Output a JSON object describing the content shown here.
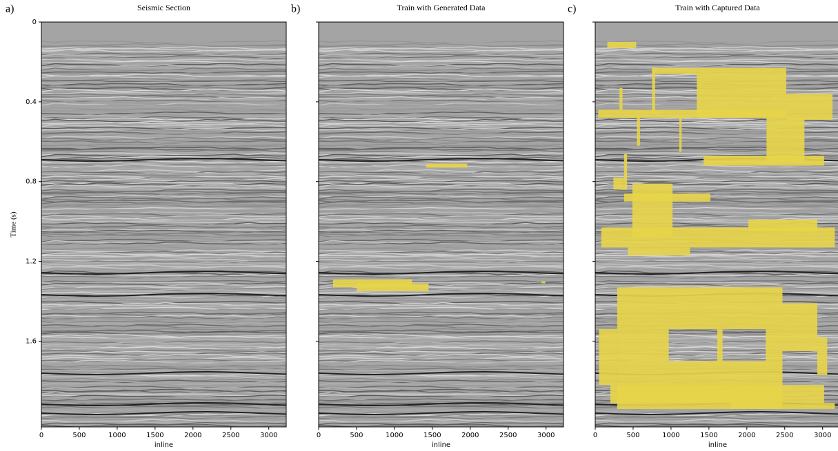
{
  "chart_data": [
    {
      "type": "image",
      "panel_label": "a)",
      "title": "Seismic Section",
      "xlabel": "inline",
      "ylabel": "Time (s)",
      "xlim": [
        0,
        3230
      ],
      "ylim": [
        0,
        2.03
      ],
      "y_inverted": true,
      "xticks": [
        0,
        500,
        1000,
        1500,
        2000,
        2500,
        3000
      ],
      "yticks": [
        0,
        0.4,
        0.8,
        1.2,
        1.6
      ],
      "ytick_labels": true,
      "region_color": "#e6d44a",
      "regions": []
    },
    {
      "type": "image",
      "panel_label": "b)",
      "title": "Train with Generated Data",
      "xlabel": "inline",
      "xlim": [
        0,
        3230
      ],
      "ylim": [
        0,
        2.03
      ],
      "y_inverted": true,
      "xticks": [
        0,
        500,
        1000,
        1500,
        2000,
        2500,
        3000
      ],
      "yticks": [
        0,
        0.4,
        0.8,
        1.2,
        1.6
      ],
      "ytick_labels": false,
      "region_color": "#e6d44a",
      "regions": [
        [
          1420,
          1960,
          0.71,
          0.73
        ],
        [
          190,
          1230,
          1.29,
          1.33
        ],
        [
          500,
          1450,
          1.31,
          1.35
        ],
        [
          2940,
          2990,
          1.3,
          1.31
        ]
      ]
    },
    {
      "type": "image",
      "panel_label": "c)",
      "title": "Train with Captured Data",
      "xlabel": "inline",
      "xlim": [
        0,
        3230
      ],
      "ylim": [
        0,
        2.03
      ],
      "y_inverted": true,
      "xticks": [
        0,
        500,
        1000,
        1500,
        2000,
        2500,
        3000
      ],
      "yticks": [
        0,
        0.4,
        0.8,
        1.2,
        1.6
      ],
      "ytick_labels": false,
      "region_color": "#e6d44a",
      "regions": [
        [
          160,
          540,
          0.1,
          0.13
        ],
        [
          750,
          1340,
          0.23,
          0.26
        ],
        [
          1340,
          2520,
          0.23,
          0.48
        ],
        [
          2520,
          3130,
          0.36,
          0.49
        ],
        [
          40,
          2520,
          0.44,
          0.48
        ],
        [
          750,
          790,
          0.23,
          0.46
        ],
        [
          320,
          360,
          0.33,
          0.44
        ],
        [
          2260,
          2760,
          0.48,
          0.7
        ],
        [
          1430,
          3020,
          0.67,
          0.72
        ],
        [
          550,
          590,
          0.48,
          0.62
        ],
        [
          1110,
          1140,
          0.48,
          0.65
        ],
        [
          240,
          380,
          0.78,
          0.84
        ],
        [
          380,
          420,
          0.66,
          0.84
        ],
        [
          490,
          1020,
          0.81,
          1.08
        ],
        [
          380,
          1520,
          0.86,
          0.9
        ],
        [
          80,
          3160,
          1.03,
          1.13
        ],
        [
          2020,
          2930,
          0.99,
          1.05
        ],
        [
          430,
          1250,
          1.13,
          1.17
        ],
        [
          290,
          2470,
          1.33,
          1.54
        ],
        [
          290,
          970,
          1.54,
          1.7
        ],
        [
          1610,
          1680,
          1.54,
          1.7
        ],
        [
          2250,
          2470,
          1.54,
          1.7
        ],
        [
          290,
          2470,
          1.7,
          1.94
        ],
        [
          50,
          290,
          1.54,
          1.82
        ],
        [
          2470,
          2930,
          1.41,
          1.65
        ],
        [
          2930,
          3060,
          1.58,
          1.77
        ],
        [
          200,
          3020,
          1.82,
          1.91
        ],
        [
          1790,
          3160,
          1.91,
          1.94
        ]
      ]
    }
  ]
}
